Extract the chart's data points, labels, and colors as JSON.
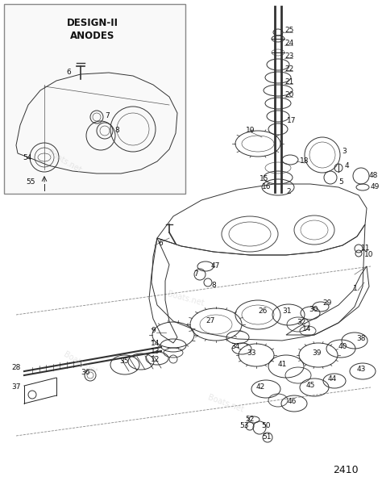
{
  "bg_color": "#ffffff",
  "text_color": "#111111",
  "line_color": "#222222",
  "watermark": "Boats.net",
  "diagram_number": "2410",
  "inset_title_line1": "DESIGN-II",
  "inset_title_line2": "ANODES",
  "font_size_labels": 6.5,
  "font_size_title": 8.5,
  "line_width": 0.7,
  "figsize": [
    4.74,
    5.96
  ],
  "dpi": 100
}
